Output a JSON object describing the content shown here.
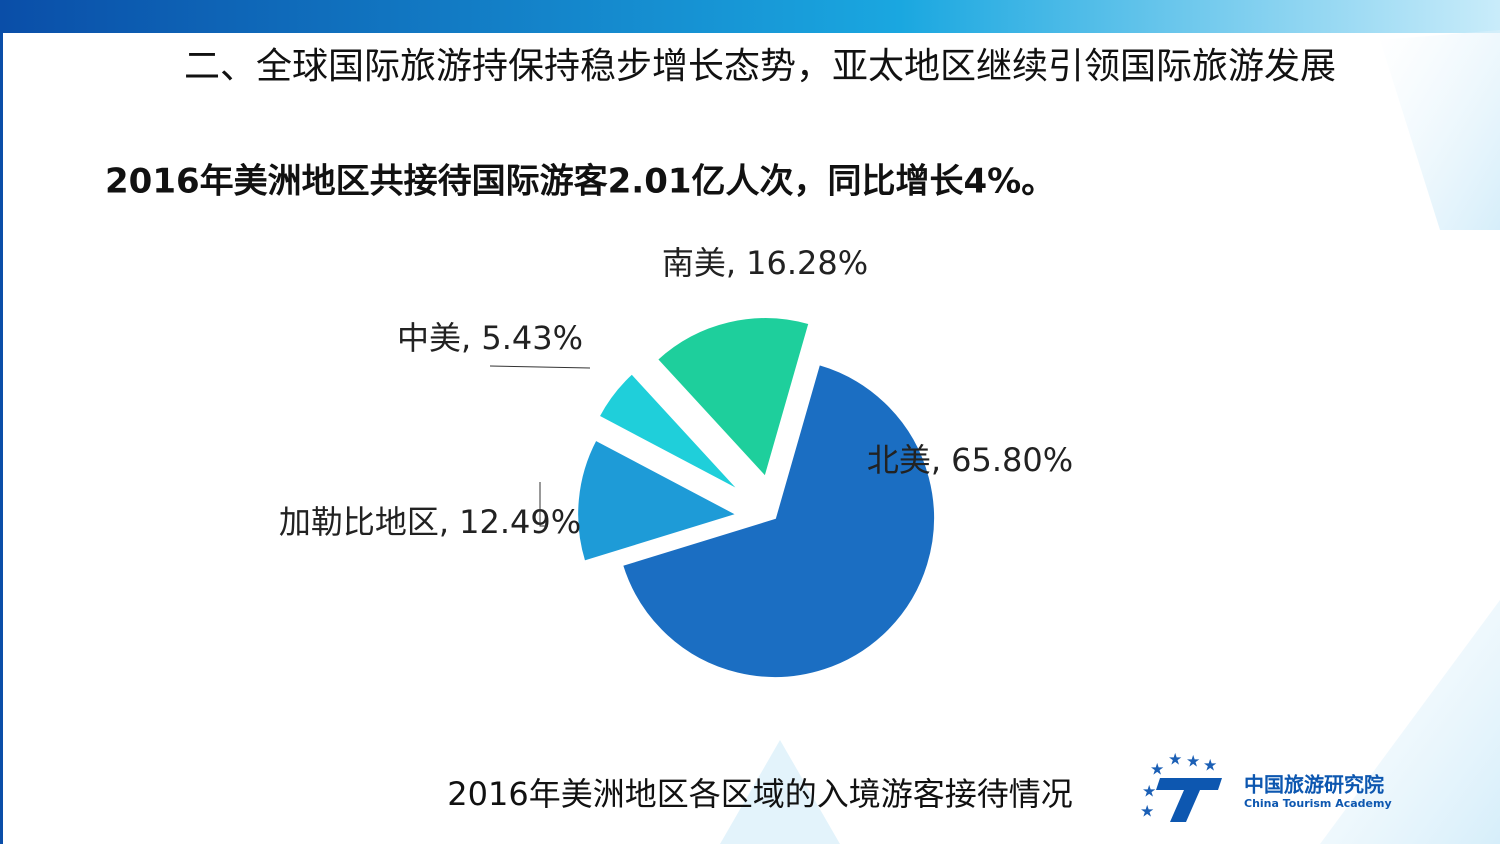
{
  "header": {
    "title": "二、全球国际旅游持保持稳步增长态势，亚太地区继续引领国际旅游发展"
  },
  "subtitle": "2016年美洲地区共接待国际游客2.01亿人次，同比增长4%。",
  "chart_data": {
    "type": "pie",
    "caption": "2016年美洲地区各区域的入境游客接待情况",
    "values": [
      65.8,
      12.49,
      5.43,
      16.28
    ],
    "value_labels": [
      "北美, 65.80%",
      "加勒比地区, 12.49%",
      "中美, 5.43%",
      "南美, 16.28%"
    ],
    "colors": [
      "#1b6ec2",
      "#1e9bd7",
      "#1fcfda",
      "#1ecf9c"
    ]
  },
  "logo": {
    "name": "中国旅游研究院",
    "subname": "China Tourism Academy"
  }
}
